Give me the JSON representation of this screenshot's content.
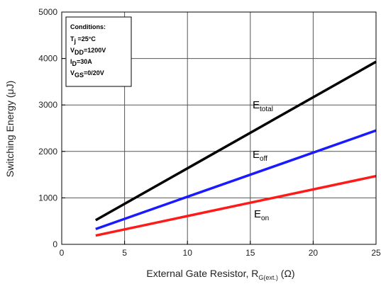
{
  "chart_data": {
    "type": "line",
    "xlabel": {
      "main": "External Gate Resistor, R",
      "sub": "G(ext.)",
      "unit": " (Ω)"
    },
    "ylabel": "Switching Energy (μJ)",
    "xlim": [
      0,
      25
    ],
    "ylim": [
      0,
      5000
    ],
    "xticks": [
      0,
      5,
      10,
      15,
      20,
      25
    ],
    "yticks": [
      0,
      1000,
      2000,
      3000,
      4000,
      5000
    ],
    "grid": true,
    "conditions": {
      "title": "Conditions:",
      "lines": [
        {
          "main": "T",
          "sub": "j",
          "rest": " =25°C"
        },
        {
          "main": "V",
          "sub": "DD",
          "rest": "=1200V"
        },
        {
          "main": "I",
          "sub": "D",
          "rest": "=30A"
        },
        {
          "main": "V",
          "sub": "GS",
          "rest": "=0/20V"
        }
      ]
    },
    "series": [
      {
        "name": "total",
        "label_main": "E",
        "label_sub": "total",
        "color": "#000000",
        "x": [
          2.7,
          25
        ],
        "y": [
          520,
          3930
        ]
      },
      {
        "name": "off",
        "label_main": "E",
        "label_sub": "off",
        "color": "#1a1aff",
        "x": [
          2.7,
          25
        ],
        "y": [
          330,
          2450
        ]
      },
      {
        "name": "on",
        "label_main": "E",
        "label_sub": "on",
        "color": "#ff1a1a",
        "x": [
          2.7,
          25
        ],
        "y": [
          190,
          1470
        ]
      }
    ]
  }
}
